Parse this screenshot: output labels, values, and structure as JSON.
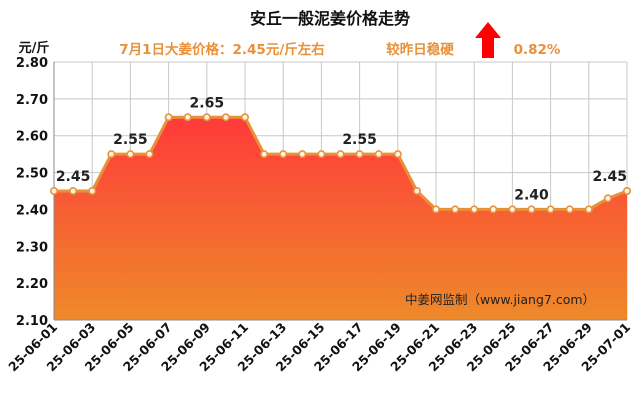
{
  "chart_data": {
    "type": "area",
    "title": "安丘一般泥姜价格走势",
    "subtitle": "7月1日大姜价格：2.45元/斤左右",
    "change_text": "较昨日稳硬",
    "change_value": "0.82%",
    "change_direction": "up",
    "ylabel": "元/斤",
    "ylim": [
      2.1,
      2.8
    ],
    "yticks": [
      "2.10",
      "2.20",
      "2.30",
      "2.40",
      "2.50",
      "2.60",
      "2.70",
      "2.80"
    ],
    "watermark": "中姜网监制（www.jiang7.com）",
    "x": [
      "25-06-01",
      "25-06-02",
      "25-06-03",
      "25-06-04",
      "25-06-05",
      "25-06-06",
      "25-06-07",
      "25-06-08",
      "25-06-09",
      "25-06-10",
      "25-06-11",
      "25-06-12",
      "25-06-13",
      "25-06-14",
      "25-06-15",
      "25-06-16",
      "25-06-17",
      "25-06-18",
      "25-06-19",
      "25-06-20",
      "25-06-21",
      "25-06-22",
      "25-06-23",
      "25-06-24",
      "25-06-25",
      "25-06-26",
      "25-06-27",
      "25-06-28",
      "25-06-29",
      "25-06-30",
      "25-07-01"
    ],
    "xtick_labels": [
      "25-06-01",
      "25-06-03",
      "25-06-05",
      "25-06-07",
      "25-06-09",
      "25-06-11",
      "25-06-13",
      "25-06-15",
      "25-06-17",
      "25-06-19",
      "25-06-21",
      "25-06-23",
      "25-06-25",
      "25-06-27",
      "25-06-29",
      "25-07-01"
    ],
    "values": [
      2.45,
      2.45,
      2.45,
      2.55,
      2.55,
      2.55,
      2.65,
      2.65,
      2.65,
      2.65,
      2.65,
      2.55,
      2.55,
      2.55,
      2.55,
      2.55,
      2.55,
      2.55,
      2.55,
      2.45,
      2.4,
      2.4,
      2.4,
      2.4,
      2.4,
      2.4,
      2.4,
      2.4,
      2.4,
      2.43,
      2.45
    ],
    "data_labels": [
      {
        "i": 1,
        "text": "2.45"
      },
      {
        "i": 4,
        "text": "2.55"
      },
      {
        "i": 8,
        "text": "2.65"
      },
      {
        "i": 16,
        "text": "2.55"
      },
      {
        "i": 25,
        "text": "2.40"
      },
      {
        "i": 30,
        "text": "2.45"
      }
    ],
    "grid": true,
    "colors": {
      "line": "#e8913a",
      "marker_fill": "#fff3e6",
      "fill_top": "#ff3a3a",
      "fill_bottom": "#ee8a2a",
      "subtitle": "#e8913a",
      "arrow": "#ff0000",
      "grid": "#c8c8c8"
    }
  }
}
